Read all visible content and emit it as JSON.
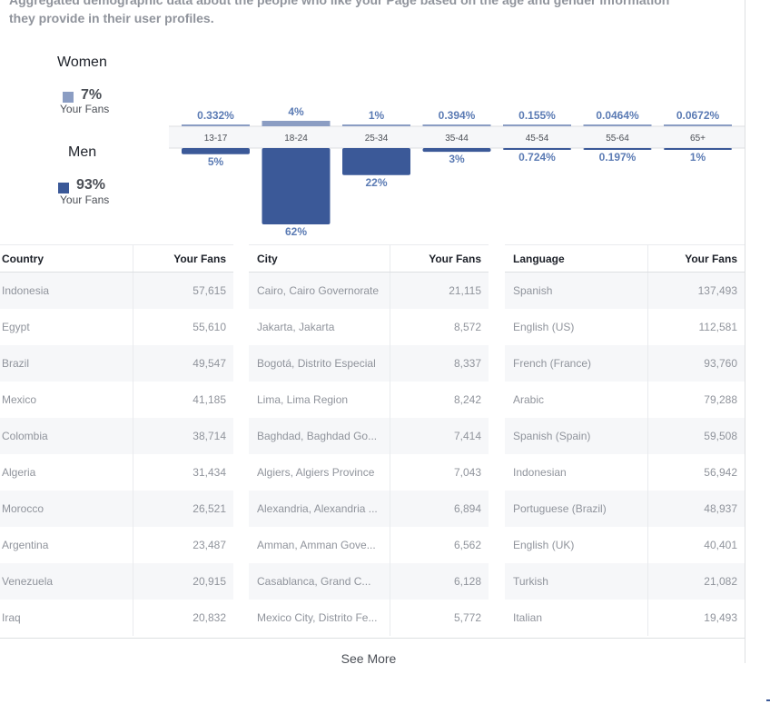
{
  "intro": {
    "line1": "Aggregated demographic data about the people who like your Page based on the age and gender information",
    "line2": "they provide in their user profiles."
  },
  "gender": {
    "women": {
      "label": "Women",
      "percent": "7%",
      "sub": "Your Fans",
      "color": "#8b9dc3"
    },
    "men": {
      "label": "Men",
      "percent": "93%",
      "sub": "Your Fans",
      "color": "#3b5998"
    }
  },
  "chart_data": {
    "type": "bar",
    "categories": [
      "13-17",
      "18-24",
      "25-34",
      "35-44",
      "45-54",
      "55-64",
      "65+"
    ],
    "series": [
      {
        "name": "Women",
        "values": [
          0.332,
          4,
          1,
          0.394,
          0.155,
          0.0464,
          0.0672
        ],
        "labels": [
          "0.332%",
          "4%",
          "1%",
          "0.394%",
          "0.155%",
          "0.0464%",
          "0.0672%"
        ],
        "color": "#8b9dc3"
      },
      {
        "name": "Men",
        "values": [
          5,
          62,
          22,
          3,
          0.724,
          0.197,
          1
        ],
        "labels": [
          "5%",
          "62%",
          "22%",
          "3%",
          "0.724%",
          "0.197%",
          "1%"
        ],
        "color": "#3b5998"
      }
    ],
    "ylim": [
      0,
      62
    ]
  },
  "tables": {
    "country": {
      "headers": [
        "Country",
        "Your Fans"
      ],
      "rows": [
        [
          "Indonesia",
          "57,615"
        ],
        [
          "Egypt",
          "55,610"
        ],
        [
          "Brazil",
          "49,547"
        ],
        [
          "Mexico",
          "41,185"
        ],
        [
          "Colombia",
          "38,714"
        ],
        [
          "Algeria",
          "31,434"
        ],
        [
          "Morocco",
          "26,521"
        ],
        [
          "Argentina",
          "23,487"
        ],
        [
          "Venezuela",
          "20,915"
        ],
        [
          "Iraq",
          "20,832"
        ]
      ]
    },
    "city": {
      "headers": [
        "City",
        "Your Fans"
      ],
      "rows": [
        [
          "Cairo, Cairo Governorate",
          "21,115"
        ],
        [
          "Jakarta, Jakarta",
          "8,572"
        ],
        [
          "Bogotá, Distrito Especial",
          "8,337"
        ],
        [
          "Lima, Lima Region",
          "8,242"
        ],
        [
          "Baghdad, Baghdad Go...",
          "7,414"
        ],
        [
          "Algiers, Algiers Province",
          "7,043"
        ],
        [
          "Alexandria, Alexandria ...",
          "6,894"
        ],
        [
          "Amman, Amman Gove...",
          "6,562"
        ],
        [
          "Casablanca, Grand C...",
          "6,128"
        ],
        [
          "Mexico City, Distrito Fe...",
          "5,772"
        ]
      ]
    },
    "language": {
      "headers": [
        "Language",
        "Your Fans"
      ],
      "rows": [
        [
          "Spanish",
          "137,493"
        ],
        [
          "English (US)",
          "112,581"
        ],
        [
          "French (France)",
          "93,760"
        ],
        [
          "Arabic",
          "79,288"
        ],
        [
          "Spanish (Spain)",
          "59,508"
        ],
        [
          "Indonesian",
          "56,942"
        ],
        [
          "Portuguese (Brazil)",
          "48,937"
        ],
        [
          "English (UK)",
          "40,401"
        ],
        [
          "Turkish",
          "21,082"
        ],
        [
          "Italian",
          "19,493"
        ]
      ]
    }
  },
  "see_more": "See More"
}
